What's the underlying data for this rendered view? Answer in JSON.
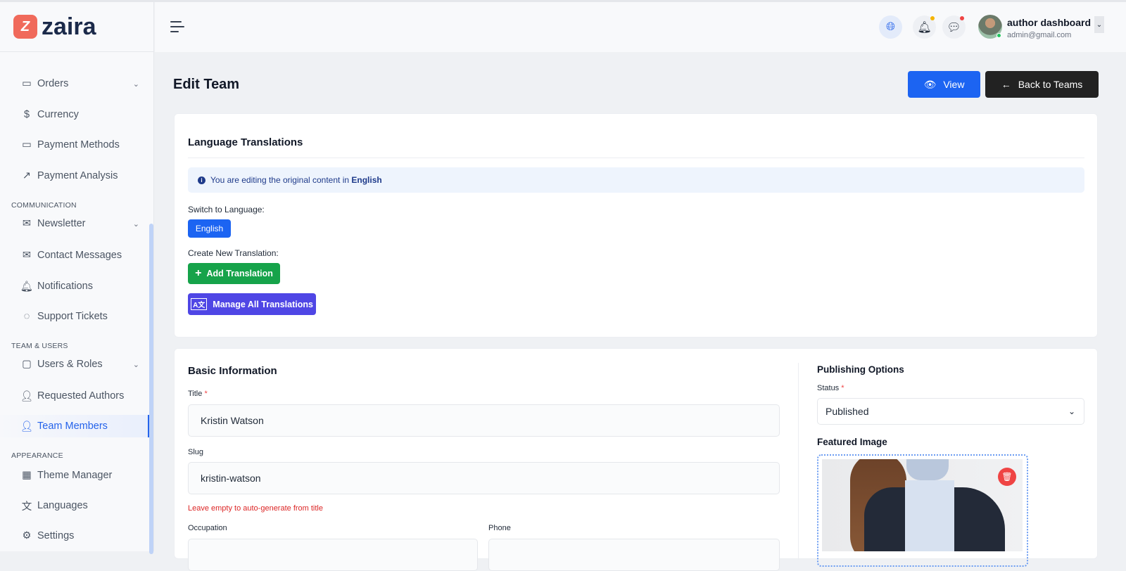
{
  "brand": {
    "name": "zaira"
  },
  "sidebar": {
    "items": [
      {
        "label": "Orders",
        "icon": "clipboard-icon",
        "chevron": true
      },
      {
        "label": "Currency",
        "icon": "currency-icon"
      },
      {
        "label": "Payment Methods",
        "icon": "credit-card-icon"
      },
      {
        "label": "Payment Analysis",
        "icon": "chart-line-icon"
      },
      {
        "label": "Newsletter",
        "icon": "mail-icon",
        "chevron": true
      },
      {
        "label": "Contact Messages",
        "icon": "mail-icon"
      },
      {
        "label": "Notifications",
        "icon": "bell-icon"
      },
      {
        "label": "Support Tickets",
        "icon": "chat-icon"
      },
      {
        "label": "Users & Roles",
        "icon": "archive-icon",
        "chevron": true
      },
      {
        "label": "Requested Authors",
        "icon": "users-icon"
      },
      {
        "label": "Team Members",
        "icon": "users-icon",
        "active": true
      },
      {
        "label": "Theme Manager",
        "icon": "palette-icon"
      },
      {
        "label": "Languages",
        "icon": "translate-icon"
      },
      {
        "label": "Settings",
        "icon": "gear-icon"
      }
    ],
    "sections": {
      "communication": "COMMUNICATION",
      "team": "TEAM & USERS",
      "appearance": "APPEARANCE"
    }
  },
  "header": {
    "user_name": "author dashboard",
    "user_email": "admin@gmail.com",
    "notification_dot_color": "#f5b400",
    "message_dot_color": "#ef4444"
  },
  "page": {
    "title": "Edit Team",
    "view_label": "View",
    "back_label": "Back to Teams"
  },
  "translations": {
    "title": "Language Translations",
    "info_prefix": "You are editing the original content in ",
    "info_lang": "English",
    "switch_label": "Switch to Language:",
    "current_lang": "English",
    "create_label": "Create New Translation:",
    "add_label": "Add Translation",
    "manage_label": "Manage All Translations"
  },
  "basic": {
    "title": "Basic Information",
    "title_label": "Title",
    "title_value": "Kristin Watson",
    "slug_label": "Slug",
    "slug_value": "kristin-watson",
    "slug_help": "Leave empty to auto-generate from title",
    "occupation_label": "Occupation",
    "phone_label": "Phone"
  },
  "publishing": {
    "title": "Publishing Options",
    "status_label": "Status",
    "status_value": "Published",
    "featured_label": "Featured Image"
  },
  "colors": {
    "primary": "#1c64f2",
    "success": "#16a34a",
    "indigo": "#4f46e5",
    "dark": "#222222",
    "danger": "#ef4444"
  }
}
